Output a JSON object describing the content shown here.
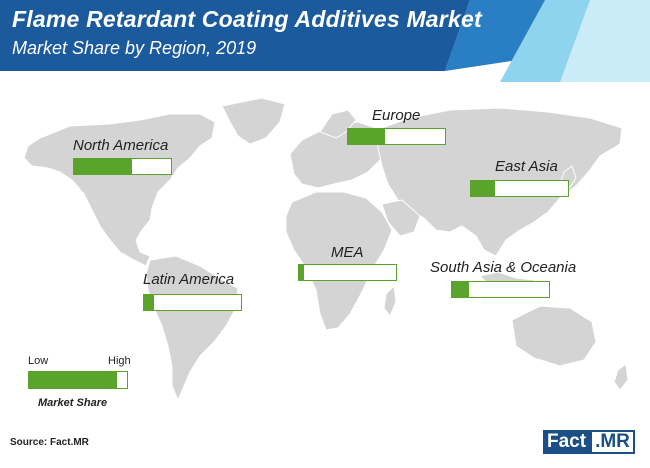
{
  "header": {
    "title": "Flame Retardant Coating Additives Market",
    "subtitle": "Market Share by Region, 2019"
  },
  "chart_data": {
    "type": "bar",
    "title": "Flame Retardant Coating Additives Market",
    "subtitle": "Market Share by Region, 2019",
    "scale": "relative share, 0 = Low, 1 = High",
    "categories": [
      "North America",
      "Europe",
      "East Asia",
      "MEA",
      "Latin America",
      "South Asia & Oceania"
    ],
    "values": [
      0.6,
      0.38,
      0.25,
      0.05,
      0.1,
      0.18
    ],
    "colors": {
      "fill": "#5aa42c",
      "map": "#d4d4d4",
      "header": "#1b5a9c"
    }
  },
  "legend": {
    "low_label": "Low",
    "high_label": "High",
    "caption": "Market Share",
    "fill": 0.9
  },
  "source": "Source: Fact.MR",
  "logo": {
    "part1": "Fact",
    "part2": ".MR"
  }
}
